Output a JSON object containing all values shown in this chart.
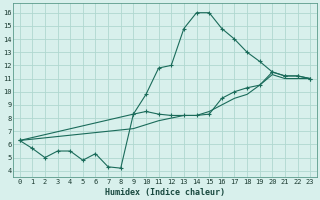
{
  "xlabel": "Humidex (Indice chaleur)",
  "bg_color": "#d8f0ec",
  "grid_color": "#b0d8d0",
  "line_color": "#1a6b5a",
  "xlim": [
    -0.5,
    23.5
  ],
  "ylim": [
    3.5,
    16.7
  ],
  "xticks": [
    0,
    1,
    2,
    3,
    4,
    5,
    6,
    7,
    8,
    9,
    10,
    11,
    12,
    13,
    14,
    15,
    16,
    17,
    18,
    19,
    20,
    21,
    22,
    23
  ],
  "yticks": [
    4,
    5,
    6,
    7,
    8,
    9,
    10,
    11,
    12,
    13,
    14,
    15,
    16
  ],
  "series1_x": [
    0,
    1,
    2,
    3,
    4,
    5,
    6,
    7,
    8,
    9,
    10,
    11,
    12,
    13,
    14,
    15,
    16,
    17,
    18,
    19,
    20,
    21,
    22,
    23
  ],
  "series1_y": [
    6.3,
    5.7,
    5.0,
    5.5,
    5.5,
    4.8,
    5.3,
    4.3,
    4.2,
    8.3,
    9.8,
    11.8,
    12.0,
    14.8,
    16.0,
    16.0,
    14.8,
    14.0,
    13.0,
    12.3,
    11.5,
    11.2,
    11.2,
    11.0
  ],
  "series2_x": [
    0,
    9,
    10,
    11,
    12,
    13,
    14,
    15,
    16,
    17,
    18,
    19,
    20,
    21,
    22,
    23
  ],
  "series2_y": [
    6.3,
    8.3,
    8.5,
    8.3,
    8.2,
    8.2,
    8.2,
    8.3,
    9.5,
    10.0,
    10.3,
    10.5,
    11.5,
    11.2,
    11.2,
    11.0
  ],
  "series3_x": [
    0,
    9,
    10,
    11,
    12,
    13,
    14,
    15,
    16,
    17,
    18,
    19,
    20,
    21,
    22,
    23
  ],
  "series3_y": [
    6.3,
    7.2,
    7.5,
    7.8,
    8.0,
    8.2,
    8.2,
    8.5,
    9.0,
    9.5,
    9.8,
    10.5,
    11.3,
    11.0,
    11.0,
    11.0
  ]
}
